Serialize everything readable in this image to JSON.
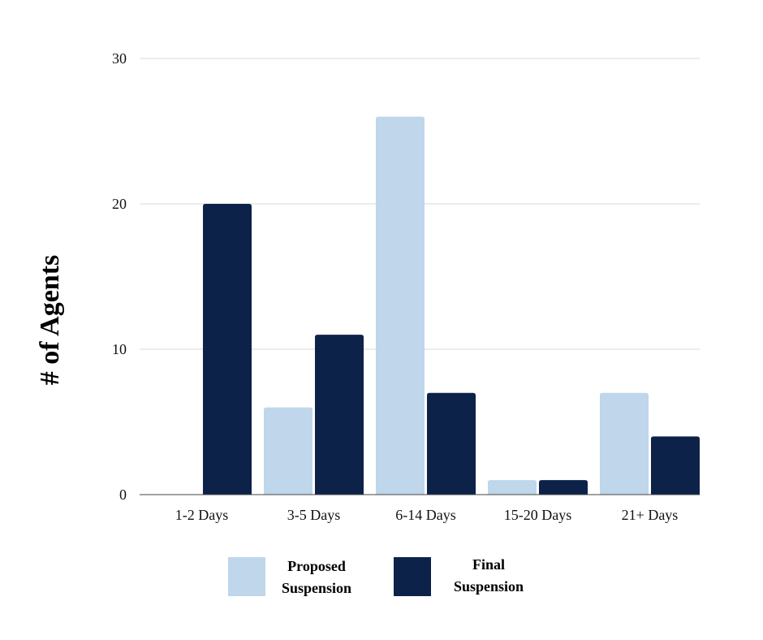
{
  "chart_data": {
    "type": "bar",
    "title": "",
    "xlabel": "",
    "ylabel": "# of Agents",
    "ylim": [
      0,
      30
    ],
    "yticks": [
      0,
      10,
      20,
      30
    ],
    "grid": true,
    "legend_position": "bottom",
    "categories": [
      "1-2 Days",
      "3-5 Days",
      "6-14 Days",
      "15-20 Days",
      "21+ Days"
    ],
    "series": [
      {
        "name": "Proposed Suspension",
        "legend_lines": [
          "Proposed",
          "Suspension"
        ],
        "color": "#bfd6eb",
        "values": [
          0,
          6,
          26,
          1,
          7
        ]
      },
      {
        "name": "Final Suspension",
        "legend_lines": [
          "Final",
          "Suspension"
        ],
        "color": "#0c2249",
        "values": [
          20,
          11,
          7,
          1,
          4
        ]
      }
    ]
  }
}
